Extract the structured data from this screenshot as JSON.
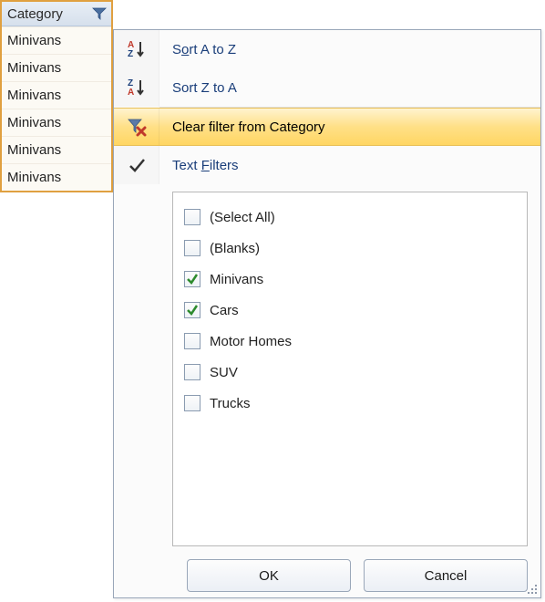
{
  "column": {
    "header": "Category",
    "rows": [
      "Minivans",
      "Minivans",
      "Minivans",
      "Minivans",
      "Minivans",
      "Minivans"
    ]
  },
  "menu": {
    "sort_az_pre": "S",
    "sort_az_ul": "o",
    "sort_az_post": "rt A to Z",
    "sort_za": "Sort Z to A",
    "clear_filter": "Clear filter from Category",
    "text_filters_pre": "Text ",
    "text_filters_ul": "F",
    "text_filters_post": "ilters"
  },
  "filters": {
    "items": [
      {
        "label": "(Select All)",
        "checked": false
      },
      {
        "label": "(Blanks)",
        "checked": false
      },
      {
        "label": "Minivans",
        "checked": true
      },
      {
        "label": "Cars",
        "checked": true
      },
      {
        "label": "Motor Homes",
        "checked": false
      },
      {
        "label": "SUV",
        "checked": false
      },
      {
        "label": "Trucks",
        "checked": false
      }
    ]
  },
  "buttons": {
    "ok": "OK",
    "cancel": "Cancel"
  },
  "colors": {
    "accent_blue": "#1a3e7a",
    "highlight_top": "#fff4cf",
    "highlight_bot": "#ffd663",
    "check_green": "#2e8b2e"
  }
}
